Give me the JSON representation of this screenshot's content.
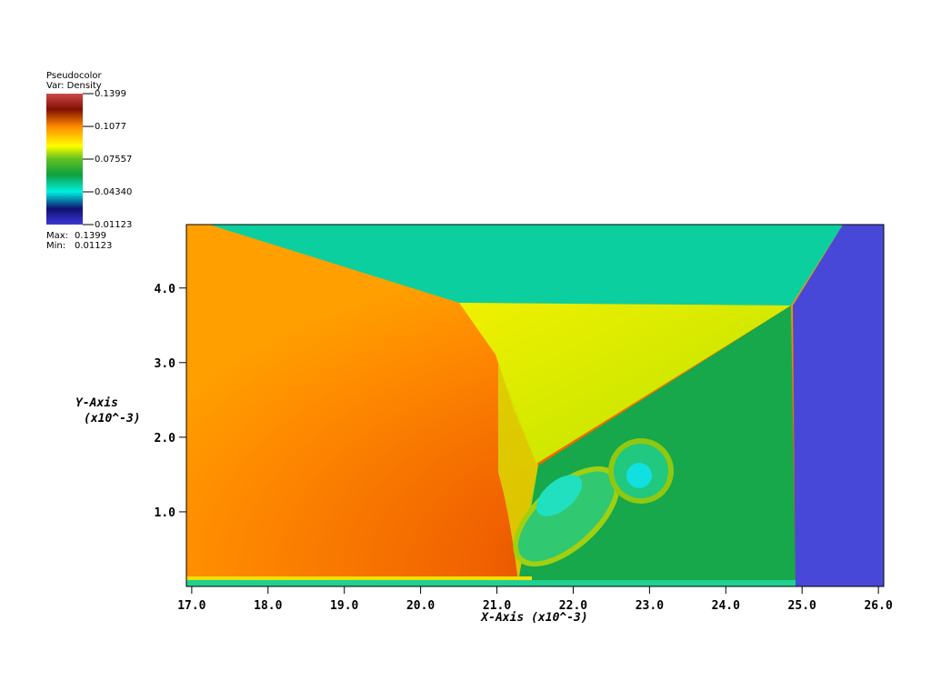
{
  "chart_data": {
    "type": "pseudocolor",
    "legend": {
      "title": "Pseudocolor",
      "variable": "Var: Density",
      "clim": [
        0.01123,
        0.1399
      ],
      "ticks": [
        0.1399,
        0.1077,
        0.07557,
        {
          "value": 0.0434,
          "label": "0.04340"
        },
        0.01123
      ],
      "max_label": "Max:",
      "max": 0.1399,
      "min_label": "Min:",
      "min": 0.01123
    },
    "xlabel": "X-Axis (x10^-3)",
    "ylabel": "Y-Axis",
    "ylabel_unit": "(x10^-3)",
    "xlim": [
      16.93,
      26.07
    ],
    "ylim": [
      0,
      4.85
    ],
    "xticks": [
      {
        "value": 17,
        "label": "17.0"
      },
      {
        "value": 18,
        "label": "18.0"
      },
      {
        "value": 19,
        "label": "19.0"
      },
      {
        "value": 20,
        "label": "20.0"
      },
      {
        "value": 21,
        "label": "21.0"
      },
      {
        "value": 22,
        "label": "22.0"
      },
      {
        "value": 23,
        "label": "23.0"
      },
      {
        "value": 24,
        "label": "24.0"
      },
      {
        "value": 25,
        "label": "25.0"
      },
      {
        "value": 26,
        "label": "26.0"
      }
    ],
    "yticks": [
      {
        "value": 1,
        "label": "1.0"
      },
      {
        "value": 2,
        "label": "2.0"
      },
      {
        "value": 3,
        "label": "3.0"
      },
      {
        "value": 4,
        "label": "4.0"
      }
    ]
  }
}
